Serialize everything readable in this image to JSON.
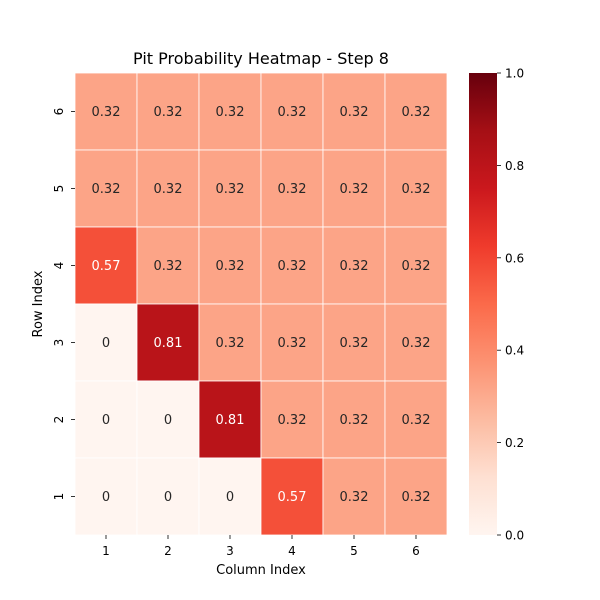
{
  "chart_data": {
    "type": "heatmap",
    "title": "Pit Probability Heatmap - Step 8",
    "xlabel": "Column Index",
    "ylabel": "Row Index",
    "x_categories": [
      "1",
      "2",
      "3",
      "4",
      "5",
      "6"
    ],
    "y_categories_top_to_bottom": [
      "6",
      "5",
      "4",
      "3",
      "2",
      "1"
    ],
    "values_top_to_bottom": [
      [
        0.32,
        0.32,
        0.32,
        0.32,
        0.32,
        0.32
      ],
      [
        0.32,
        0.32,
        0.32,
        0.32,
        0.32,
        0.32
      ],
      [
        0.57,
        0.32,
        0.32,
        0.32,
        0.32,
        0.32
      ],
      [
        0,
        0.81,
        0.32,
        0.32,
        0.32,
        0.32
      ],
      [
        0,
        0,
        0.81,
        0.32,
        0.32,
        0.32
      ],
      [
        0,
        0,
        0,
        0.57,
        0.32,
        0.32
      ]
    ],
    "value_labels_top_to_bottom": [
      [
        "0.32",
        "0.32",
        "0.32",
        "0.32",
        "0.32",
        "0.32"
      ],
      [
        "0.32",
        "0.32",
        "0.32",
        "0.32",
        "0.32",
        "0.32"
      ],
      [
        "0.57",
        "0.32",
        "0.32",
        "0.32",
        "0.32",
        "0.32"
      ],
      [
        "0",
        "0.81",
        "0.32",
        "0.32",
        "0.32",
        "0.32"
      ],
      [
        "0",
        "0",
        "0.81",
        "0.32",
        "0.32",
        "0.32"
      ],
      [
        "0",
        "0",
        "0",
        "0.57",
        "0.32",
        "0.32"
      ]
    ],
    "colorbar": {
      "range": [
        0.0,
        1.0
      ],
      "ticks": [
        0.0,
        0.2,
        0.4,
        0.6,
        0.8,
        1.0
      ],
      "tick_labels": [
        "0.0",
        "0.2",
        "0.4",
        "0.6",
        "0.8",
        "1.0"
      ],
      "colormap": "Reds"
    },
    "grid_lines_color": "#ffffff"
  }
}
